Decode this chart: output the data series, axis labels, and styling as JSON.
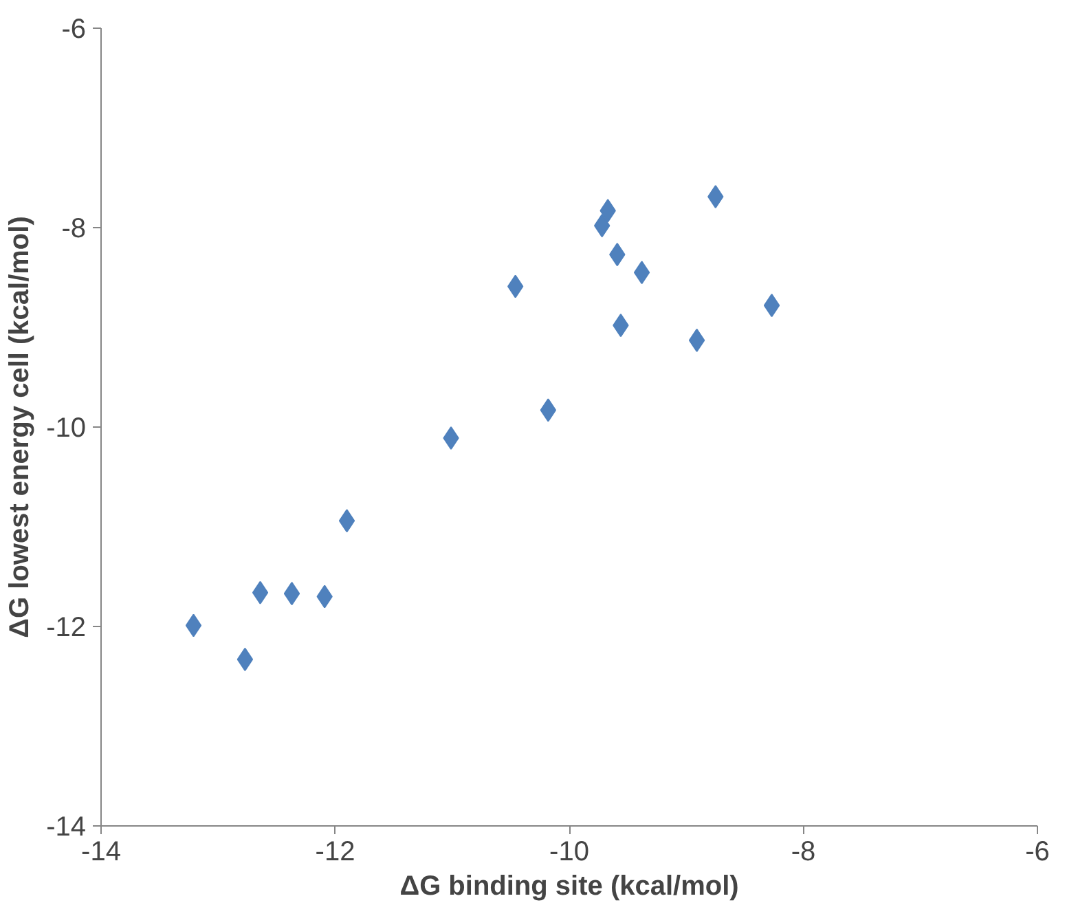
{
  "chart_data": {
    "type": "scatter",
    "xlabel": "ΔG binding site (kcal/mol)",
    "ylabel": "ΔG lowest energy cell (kcal/mol)",
    "x": [
      -13.21,
      -12.77,
      -12.64,
      -12.37,
      -12.09,
      -11.9,
      -11.01,
      -10.46,
      -10.18,
      -9.72,
      -9.67,
      -9.59,
      -9.56,
      -9.38,
      -8.91,
      -8.75,
      -8.27
    ],
    "series": [
      {
        "color": "#4f81bd",
        "values": [
          -11.99,
          -12.33,
          -11.66,
          -11.67,
          -11.7,
          -10.94,
          -10.11,
          -8.59,
          -9.83,
          -7.98,
          -7.83,
          -8.27,
          -8.98,
          -8.45,
          -9.13,
          -7.69,
          -8.78
        ]
      }
    ],
    "xlim": [
      -14,
      -6
    ],
    "ylim": [
      -14,
      -6
    ],
    "xticks": [
      -14,
      -12,
      -10,
      -8,
      -6
    ],
    "yticks": [
      -14,
      -12,
      -10,
      -8,
      -6
    ],
    "marker": "diamond",
    "grid": false
  }
}
